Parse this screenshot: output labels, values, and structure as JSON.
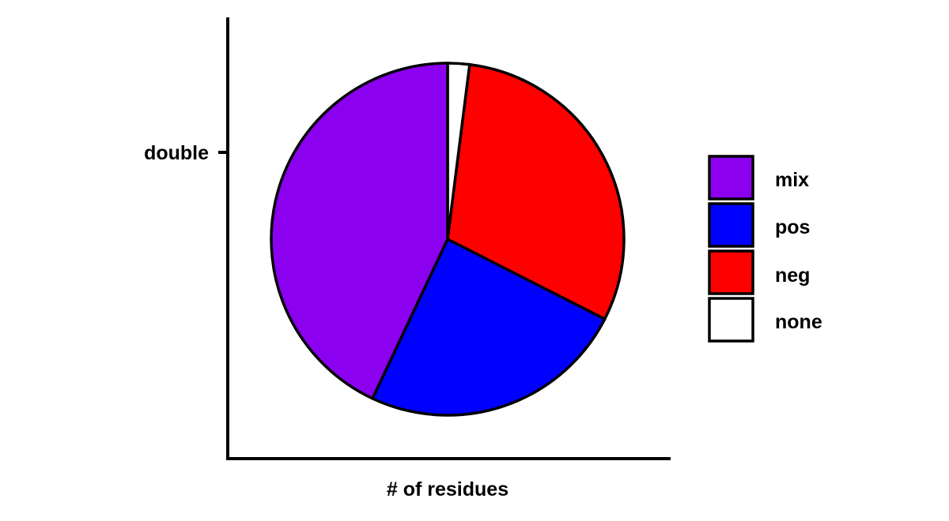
{
  "chart_data": {
    "type": "pie",
    "title": "",
    "xlabel": "# of residues",
    "ylabel": "",
    "y_tick_labels": [
      "double"
    ],
    "categories": [
      "mix",
      "pos",
      "neg",
      "none"
    ],
    "values": [
      43.0,
      24.5,
      30.5,
      2.0
    ],
    "colors": [
      "#8B00EE",
      "#0000FF",
      "#FF0000",
      "#FFFFFF"
    ],
    "order_clockwise_from_top": [
      "none",
      "neg",
      "pos",
      "mix"
    ],
    "legend": {
      "position": "right",
      "entries": [
        "mix",
        "pos",
        "neg",
        "none"
      ]
    },
    "grid": false
  }
}
